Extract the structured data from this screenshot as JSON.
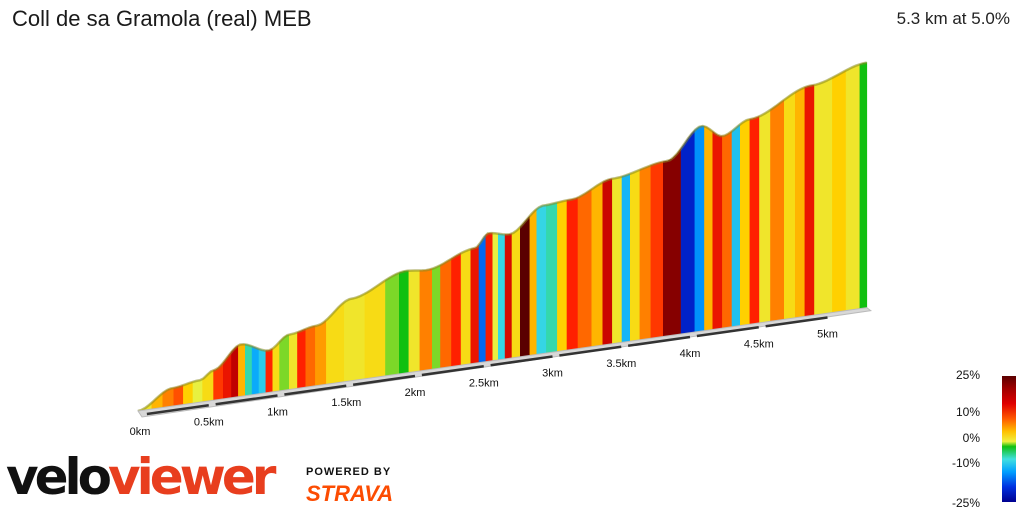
{
  "header": {
    "title": "Coll de sa Gramola (real) MEB",
    "summary": "5.3 km at 5.0%"
  },
  "branding": {
    "logo_velo": "velo",
    "logo_viewer": "viewer",
    "powered_by": "POWERED BY",
    "strava": "STRAVA"
  },
  "legend": {
    "labels": [
      "25%",
      "10%",
      "0%",
      "-10%",
      "-25%"
    ]
  },
  "chart_data": {
    "type": "area",
    "title": "Coll de sa Gramola (real) MEB",
    "subtitle": "5.3 km at 5.0%",
    "distance_km": 5.3,
    "average_gradient_pct": 5.0,
    "x_tick_labels": [
      "0km",
      "0.5km",
      "1km",
      "1.5km",
      "2km",
      "2.5km",
      "3km",
      "3.5km",
      "4km",
      "4.5km",
      "5km"
    ],
    "x_ticks_km": [
      0,
      0.5,
      1,
      1.5,
      2,
      2.5,
      3,
      3.5,
      4,
      4.5,
      5
    ],
    "color_scale_pct": [
      25,
      10,
      0,
      -10,
      -25
    ],
    "gradient_color_stops": [
      {
        "pct": 25,
        "color": "#5a0000"
      },
      {
        "pct": 18,
        "color": "#c00000"
      },
      {
        "pct": 12,
        "color": "#ff2000"
      },
      {
        "pct": 8,
        "color": "#ff8000"
      },
      {
        "pct": 5,
        "color": "#ffd000"
      },
      {
        "pct": 2,
        "color": "#e8f040"
      },
      {
        "pct": 0,
        "color": "#10c010"
      },
      {
        "pct": -4,
        "color": "#40e0e0"
      },
      {
        "pct": -10,
        "color": "#00a0ff"
      },
      {
        "pct": -18,
        "color": "#0030e0"
      },
      {
        "pct": -25,
        "color": "#000090"
      }
    ],
    "segments": [
      {
        "x": 0.0,
        "grade": 3
      },
      {
        "x": 0.1,
        "grade": 6
      },
      {
        "x": 0.18,
        "grade": 8
      },
      {
        "x": 0.26,
        "grade": 10
      },
      {
        "x": 0.33,
        "grade": 5
      },
      {
        "x": 0.4,
        "grade": 2
      },
      {
        "x": 0.47,
        "grade": 4
      },
      {
        "x": 0.55,
        "grade": 11
      },
      {
        "x": 0.62,
        "grade": 14
      },
      {
        "x": 0.68,
        "grade": 18
      },
      {
        "x": 0.73,
        "grade": 6
      },
      {
        "x": 0.78,
        "grade": -3
      },
      {
        "x": 0.83,
        "grade": -9
      },
      {
        "x": 0.88,
        "grade": -6
      },
      {
        "x": 0.93,
        "grade": 12
      },
      {
        "x": 0.98,
        "grade": 4
      },
      {
        "x": 1.03,
        "grade": 1
      },
      {
        "x": 1.1,
        "grade": 3
      },
      {
        "x": 1.16,
        "grade": 12
      },
      {
        "x": 1.22,
        "grade": 9
      },
      {
        "x": 1.29,
        "grade": 7
      },
      {
        "x": 1.37,
        "grade": 4
      },
      {
        "x": 1.5,
        "grade": 3
      },
      {
        "x": 1.65,
        "grade": 4
      },
      {
        "x": 1.8,
        "grade": 1
      },
      {
        "x": 1.9,
        "grade": 0
      },
      {
        "x": 1.97,
        "grade": 3
      },
      {
        "x": 2.05,
        "grade": 8
      },
      {
        "x": 2.14,
        "grade": 1
      },
      {
        "x": 2.2,
        "grade": 9
      },
      {
        "x": 2.28,
        "grade": 12
      },
      {
        "x": 2.35,
        "grade": 4
      },
      {
        "x": 2.42,
        "grade": 14
      },
      {
        "x": 2.48,
        "grade": -14
      },
      {
        "x": 2.53,
        "grade": 13
      },
      {
        "x": 2.58,
        "grade": 2
      },
      {
        "x": 2.62,
        "grade": -5
      },
      {
        "x": 2.67,
        "grade": 16
      },
      {
        "x": 2.72,
        "grade": 4
      },
      {
        "x": 2.78,
        "grade": 25
      },
      {
        "x": 2.85,
        "grade": 6
      },
      {
        "x": 2.9,
        "grade": -5
      },
      {
        "x": 2.97,
        "grade": -3
      },
      {
        "x": 3.05,
        "grade": 5
      },
      {
        "x": 3.12,
        "grade": 12
      },
      {
        "x": 3.2,
        "grade": 9
      },
      {
        "x": 3.3,
        "grade": 6
      },
      {
        "x": 3.38,
        "grade": 17
      },
      {
        "x": 3.45,
        "grade": 3
      },
      {
        "x": 3.52,
        "grade": -8
      },
      {
        "x": 3.58,
        "grade": 4
      },
      {
        "x": 3.65,
        "grade": 8
      },
      {
        "x": 3.73,
        "grade": 11
      },
      {
        "x": 3.82,
        "grade": 22
      },
      {
        "x": 3.95,
        "grade": -20
      },
      {
        "x": 4.05,
        "grade": -11
      },
      {
        "x": 4.12,
        "grade": 6
      },
      {
        "x": 4.18,
        "grade": 14
      },
      {
        "x": 4.25,
        "grade": 9
      },
      {
        "x": 4.32,
        "grade": -7
      },
      {
        "x": 4.38,
        "grade": 5
      },
      {
        "x": 4.45,
        "grade": 12
      },
      {
        "x": 4.52,
        "grade": 3
      },
      {
        "x": 4.6,
        "grade": 8
      },
      {
        "x": 4.7,
        "grade": 4
      },
      {
        "x": 4.78,
        "grade": 6
      },
      {
        "x": 4.85,
        "grade": 14
      },
      {
        "x": 4.92,
        "grade": 3
      },
      {
        "x": 5.05,
        "grade": 5
      },
      {
        "x": 5.15,
        "grade": 3
      },
      {
        "x": 5.25,
        "grade": 0
      }
    ],
    "elevation_profile": [
      {
        "x": 0.0,
        "h": 0
      },
      {
        "x": 0.25,
        "h": 18
      },
      {
        "x": 0.45,
        "h": 22
      },
      {
        "x": 0.55,
        "h": 30
      },
      {
        "x": 0.75,
        "h": 52
      },
      {
        "x": 0.95,
        "h": 42
      },
      {
        "x": 1.1,
        "h": 55
      },
      {
        "x": 1.3,
        "h": 60
      },
      {
        "x": 1.55,
        "h": 82
      },
      {
        "x": 1.95,
        "h": 102
      },
      {
        "x": 2.1,
        "h": 100
      },
      {
        "x": 2.45,
        "h": 115
      },
      {
        "x": 2.55,
        "h": 128
      },
      {
        "x": 2.7,
        "h": 124
      },
      {
        "x": 2.95,
        "h": 148
      },
      {
        "x": 3.15,
        "h": 150
      },
      {
        "x": 3.45,
        "h": 165
      },
      {
        "x": 3.85,
        "h": 175
      },
      {
        "x": 4.1,
        "h": 205
      },
      {
        "x": 4.25,
        "h": 192
      },
      {
        "x": 4.45,
        "h": 205
      },
      {
        "x": 4.9,
        "h": 230
      },
      {
        "x": 5.3,
        "h": 245
      }
    ]
  }
}
